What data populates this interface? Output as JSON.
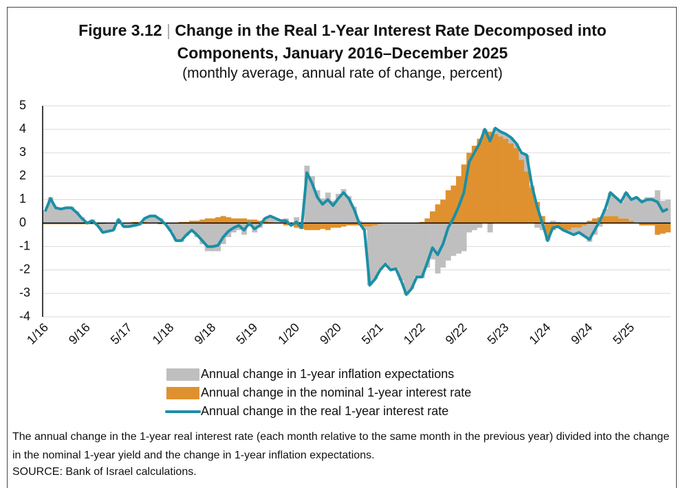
{
  "chart_data": {
    "type": "combo",
    "figure_label": "Figure 3.12",
    "title": "Change in the Real 1-Year Interest Rate Decomposed into Components, January 2016–December 2025",
    "subtitle": "(monthly average, annual rate of change, percent)",
    "note": "The annual change in the 1-year real interest rate (each month relative to the same month in the previous year) divided into the change in the nominal 1-year yield and the change in 1-year inflation expectations.",
    "source": "SOURCE: Bank of Israel calculations.",
    "ylim": [
      -4,
      5
    ],
    "yticks": [
      -4,
      -3,
      -2,
      -1,
      0,
      1,
      2,
      3,
      4,
      5
    ],
    "grid": true,
    "stacked": true,
    "categories": [
      "1/16",
      null,
      null,
      null,
      null,
      null,
      null,
      null,
      "9/16",
      null,
      null,
      null,
      null,
      null,
      null,
      null,
      "5/17",
      null,
      null,
      null,
      null,
      null,
      null,
      null,
      "1/18",
      null,
      null,
      null,
      null,
      null,
      null,
      null,
      "9/18",
      null,
      null,
      null,
      null,
      null,
      null,
      null,
      "5/19",
      null,
      null,
      null,
      null,
      null,
      null,
      null,
      "1/20",
      null,
      null,
      null,
      null,
      null,
      null,
      null,
      "9/20",
      null,
      null,
      null,
      null,
      null,
      null,
      null,
      "5/21",
      null,
      null,
      null,
      null,
      null,
      null,
      null,
      "1/22",
      null,
      null,
      null,
      null,
      null,
      null,
      null,
      "9/22",
      null,
      null,
      null,
      null,
      null,
      null,
      null,
      "5/23",
      null,
      null,
      null,
      null,
      null,
      null,
      null,
      "1/24",
      null,
      null,
      null,
      null,
      null,
      null,
      null,
      "9/24",
      null,
      null,
      null,
      null,
      null,
      null,
      null,
      "5/25",
      null,
      null,
      null,
      null,
      null,
      null,
      null
    ],
    "series": [
      {
        "name": "Annual change in 1-year inflation expectations",
        "kind": "bar",
        "color": "#bfbfbf",
        "values": [
          0.55,
          1.1,
          0.7,
          0.65,
          0.7,
          0.7,
          0.5,
          0.25,
          0.05,
          0.15,
          -0.05,
          -0.35,
          -0.35,
          -0.3,
          0.15,
          -0.15,
          -0.15,
          -0.15,
          -0.1,
          0.15,
          0.3,
          0.3,
          0.2,
          0,
          -0.35,
          -0.75,
          -0.8,
          -0.55,
          -0.4,
          -0.6,
          -0.9,
          -1.2,
          -1.2,
          -1.2,
          -0.9,
          -0.6,
          -0.4,
          -0.3,
          -0.5,
          -0.15,
          -0.4,
          -0.2,
          0.1,
          0.25,
          0.2,
          0.1,
          0.2,
          0,
          0.25,
          0.05,
          2.45,
          2.0,
          1.4,
          1.05,
          1.3,
          0.95,
          1.25,
          1.45,
          1.15,
          0.7,
          0.1,
          -0.15,
          -2.5,
          -2.3,
          -1.95,
          -1.75,
          -2.0,
          -1.95,
          -2.45,
          -3.05,
          -2.8,
          -2.3,
          -2.35,
          -1.9,
          -1.55,
          -2.15,
          -1.9,
          -1.6,
          -1.4,
          -1.3,
          -1.2,
          -0.4,
          -0.3,
          -0.2,
          0.2,
          -0.4,
          0.25,
          0.2,
          0.2,
          0.25,
          0.2,
          0.3,
          0.7,
          0.1,
          -0.2,
          -0.3,
          -0.15,
          0.1,
          0.05,
          0,
          -0.1,
          -0.3,
          -0.2,
          -0.45,
          -0.8,
          -0.5,
          -0.15,
          0.3,
          1.0,
          0.8,
          0.7,
          1.1,
          0.9,
          1.1,
          1.0,
          1.1,
          1.1,
          1.4,
          0.95,
          1.0
        ]
      },
      {
        "name": "Annual change in the nominal 1-year interest rate",
        "kind": "bar",
        "color": "#e0912f",
        "values": [
          -0.05,
          -0.05,
          -0.05,
          -0.05,
          -0.05,
          -0.05,
          -0.05,
          -0.05,
          -0.05,
          -0.05,
          -0.05,
          -0.05,
          0,
          0,
          0,
          0,
          0,
          0.05,
          0.05,
          0.05,
          0,
          0,
          -0.05,
          -0.05,
          0,
          0,
          0.05,
          0.05,
          0.1,
          0.1,
          0.15,
          0.2,
          0.2,
          0.25,
          0.3,
          0.25,
          0.2,
          0.2,
          0.2,
          0.15,
          0.15,
          0.1,
          0.1,
          0.05,
          0,
          0,
          -0.1,
          -0.1,
          -0.2,
          -0.25,
          -0.3,
          -0.3,
          -0.3,
          -0.25,
          -0.3,
          -0.2,
          -0.2,
          -0.15,
          -0.1,
          -0.1,
          -0.1,
          -0.15,
          -0.15,
          -0.1,
          -0.05,
          0,
          0,
          0,
          0,
          0,
          0,
          0,
          0.05,
          0.2,
          0.5,
          0.8,
          1.0,
          1.4,
          1.6,
          2.0,
          2.5,
          3.0,
          3.3,
          3.6,
          3.8,
          3.9,
          3.8,
          3.7,
          3.6,
          3.4,
          3.2,
          2.7,
          2.2,
          1.5,
          0.9,
          0.3,
          -0.6,
          -0.3,
          -0.2,
          -0.3,
          -0.3,
          -0.2,
          -0.2,
          -0.1,
          0.1,
          0.2,
          0.25,
          0.3,
          0.3,
          0.3,
          0.2,
          0.2,
          0.1,
          0,
          -0.1,
          -0.1,
          -0.1,
          -0.5,
          -0.45,
          -0.4
        ]
      },
      {
        "name": "Annual change in the real 1-year interest rate",
        "kind": "line",
        "color": "#1b8fa6",
        "values": [
          0.5,
          1.05,
          0.65,
          0.6,
          0.65,
          0.65,
          0.45,
          0.2,
          0.0,
          0.1,
          -0.1,
          -0.4,
          -0.35,
          -0.3,
          0.15,
          -0.15,
          -0.15,
          -0.1,
          -0.05,
          0.2,
          0.3,
          0.3,
          0.15,
          -0.05,
          -0.35,
          -0.75,
          -0.75,
          -0.5,
          -0.3,
          -0.5,
          -0.75,
          -1.0,
          -1.0,
          -0.95,
          -0.6,
          -0.35,
          -0.2,
          -0.1,
          -0.3,
          0.0,
          -0.25,
          -0.1,
          0.2,
          0.3,
          0.2,
          0.1,
          0.1,
          -0.1,
          0.05,
          -0.2,
          2.15,
          1.7,
          1.1,
          0.8,
          1.0,
          0.75,
          1.05,
          1.3,
          1.05,
          0.6,
          0.0,
          -0.3,
          -2.65,
          -2.4,
          -2.0,
          -1.75,
          -2.0,
          -1.95,
          -2.45,
          -3.05,
          -2.8,
          -2.3,
          -2.3,
          -1.7,
          -1.05,
          -1.35,
          -0.9,
          -0.2,
          0.2,
          0.7,
          1.3,
          2.6,
          3.0,
          3.4,
          4.0,
          3.5,
          4.05,
          3.9,
          3.8,
          3.65,
          3.4,
          3.0,
          2.9,
          1.6,
          0.7,
          0.0,
          -0.75,
          -0.2,
          -0.15,
          -0.3,
          -0.4,
          -0.5,
          -0.4,
          -0.55,
          -0.7,
          -0.3,
          0.1,
          0.6,
          1.3,
          1.1,
          0.9,
          1.3,
          1.0,
          1.1,
          0.9,
          1.0,
          1.0,
          0.9,
          0.5,
          0.6
        ]
      }
    ]
  }
}
